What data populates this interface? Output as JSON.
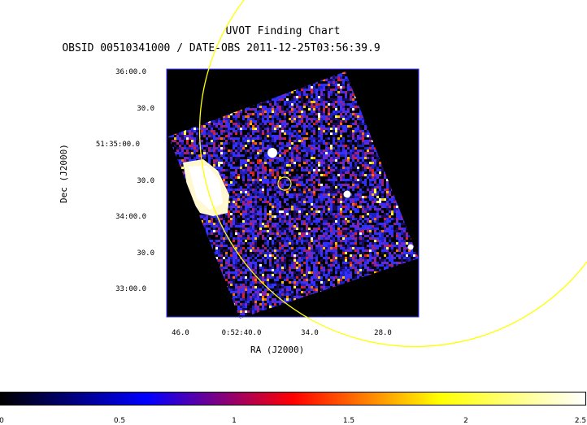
{
  "chart_data": {
    "type": "heatmap",
    "title": "UVOT Finding Chart",
    "subtitle": "OBSID 00510341000 / DATE-OBS 2011-12-25T03:56:39.9",
    "xlabel": "RA (J2000)",
    "ylabel": "Dec (J2000)",
    "y_ticks": [
      "36:00.0",
      "30.0",
      "51:35:00.0",
      "30.0",
      "34:00.0",
      "30.0",
      "33:00.0"
    ],
    "x_ticks": [
      "46.0",
      "0:52:40.0",
      "34.0",
      "28.0"
    ],
    "colorbar": {
      "ticks": [
        "0",
        "0.5",
        "1",
        "1.5",
        "2",
        "2.5"
      ],
      "range": [
        0,
        2.5
      ],
      "colors": [
        "#000000",
        "#0000ff",
        "#ff0000",
        "#ffff00",
        "#ffffff"
      ]
    },
    "overlays": [
      {
        "kind": "source-circle",
        "color": "#ffff00",
        "label": "target"
      },
      {
        "kind": "error-circle",
        "color": "#ffff00",
        "label": "large arc"
      }
    ],
    "bright_sources": 3
  }
}
